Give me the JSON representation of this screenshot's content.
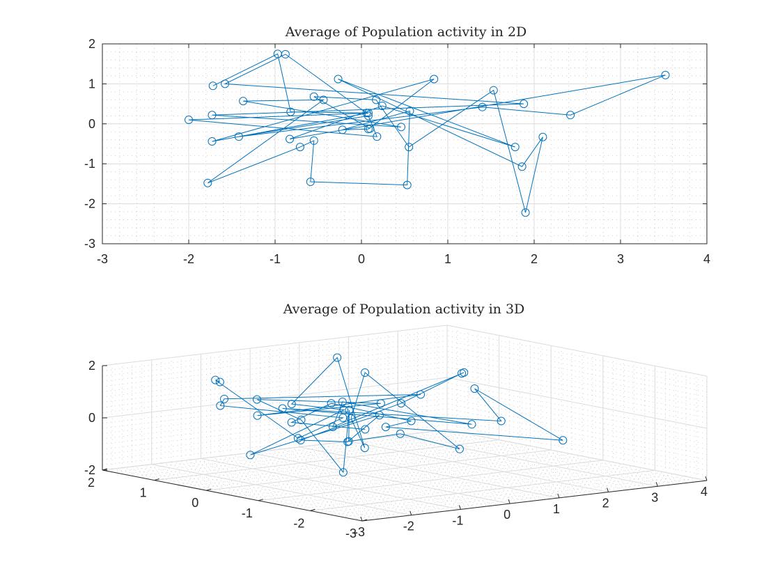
{
  "colors": {
    "series": "#0072bd",
    "axis": "#262626",
    "grid": "#dcdcdc"
  },
  "chart_data": [
    {
      "type": "line",
      "marker": "circle",
      "title": "Average of Population activity in 2D",
      "xlabel": "",
      "ylabel": "",
      "xlim": [
        -3,
        4
      ],
      "ylim": [
        -3,
        2
      ],
      "xticks": [
        "-3",
        "-2",
        "-1",
        "0",
        "1",
        "2",
        "3",
        "4"
      ],
      "yticks": [
        "-3",
        "-2",
        "-1",
        "0",
        "1",
        "2"
      ],
      "grid": true,
      "minor_grid": true,
      "box": true,
      "points": [
        [
          -1.72,
          0.95
        ],
        [
          -0.97,
          1.75
        ],
        [
          -0.82,
          0.3
        ],
        [
          0.06,
          0.27
        ],
        [
          -0.88,
          1.74
        ],
        [
          -1.58,
          1.0
        ],
        [
          1.88,
          0.5
        ],
        [
          -1.73,
          0.22
        ],
        [
          0.46,
          -0.08
        ],
        [
          -1.37,
          0.57
        ],
        [
          -0.44,
          0.6
        ],
        [
          -1.78,
          -1.48
        ],
        [
          -0.71,
          -0.58
        ],
        [
          -0.55,
          -0.42
        ],
        [
          -0.59,
          -1.45
        ],
        [
          0.53,
          -1.53
        ],
        [
          0.56,
          0.32
        ],
        [
          -0.22,
          -0.15
        ],
        [
          0.08,
          -0.13
        ],
        [
          0.84,
          1.12
        ],
        [
          -1.73,
          -0.44
        ],
        [
          0.08,
          0.27
        ],
        [
          -2.0,
          0.1
        ],
        [
          0.18,
          -0.32
        ],
        [
          0.08,
          0.2
        ],
        [
          -1.42,
          -0.32
        ],
        [
          1.4,
          0.42
        ],
        [
          2.42,
          0.22
        ],
        [
          3.52,
          1.22
        ],
        [
          -0.83,
          -0.38
        ],
        [
          0.24,
          0.45
        ],
        [
          1.78,
          -0.58
        ],
        [
          -0.27,
          1.12
        ],
        [
          1.86,
          -1.07
        ],
        [
          2.1,
          -0.33
        ],
        [
          1.9,
          -2.22
        ],
        [
          1.53,
          0.84
        ],
        [
          0.55,
          -0.58
        ],
        [
          0.17,
          0.6
        ],
        [
          -0.55,
          0.68
        ],
        [
          0.1,
          -0.12
        ]
      ]
    },
    {
      "type": "line3d",
      "marker": "circle",
      "title": "Average of Population activity in 3D",
      "xlim": [
        -3,
        4
      ],
      "ylim": [
        -3,
        2
      ],
      "zlim": [
        -2,
        2
      ],
      "xticks": [
        "-3",
        "-2",
        "-1",
        "0",
        "1",
        "2",
        "3",
        "4"
      ],
      "yticks": [
        "-3",
        "-2",
        "-1",
        "0",
        "1",
        "2"
      ],
      "zticks": [
        "-2",
        "0",
        "2"
      ],
      "grid": true,
      "minor_grid": true,
      "points": [
        [
          -1.72,
          0.95,
          1.5
        ],
        [
          -0.97,
          1.75,
          1.1
        ],
        [
          -0.82,
          0.3,
          -0.6
        ],
        [
          0.06,
          0.27,
          0.0
        ],
        [
          -0.88,
          1.74,
          0.1
        ],
        [
          -1.58,
          1.0,
          0.8
        ],
        [
          1.88,
          0.5,
          0.4
        ],
        [
          -1.73,
          0.22,
          0.5
        ],
        [
          0.46,
          -0.08,
          0.6
        ],
        [
          -1.37,
          0.57,
          0.9
        ],
        [
          -0.44,
          0.6,
          -0.1
        ],
        [
          -1.78,
          -1.48,
          -1.0
        ],
        [
          -0.71,
          -0.58,
          0.8
        ],
        [
          -0.55,
          -0.42,
          -0.5
        ],
        [
          -0.59,
          -1.45,
          0.2
        ],
        [
          0.53,
          -1.53,
          -0.6
        ],
        [
          0.56,
          0.32,
          1.6
        ],
        [
          -0.22,
          -0.15,
          0.2
        ],
        [
          0.08,
          -0.13,
          -1.0
        ],
        [
          0.84,
          1.12,
          1.8
        ],
        [
          -1.73,
          -0.44,
          1.2
        ],
        [
          0.08,
          0.27,
          0.3
        ],
        [
          -2.0,
          0.1,
          -0.9
        ],
        [
          0.18,
          -0.32,
          0.3
        ],
        [
          0.08,
          0.2,
          -0.9
        ],
        [
          -1.42,
          -0.32,
          -0.3
        ],
        [
          1.4,
          0.42,
          0.2
        ],
        [
          2.42,
          0.22,
          1.2
        ],
        [
          3.52,
          1.22,
          0.6
        ],
        [
          -0.83,
          -0.38,
          0.1
        ],
        [
          0.24,
          0.45,
          0.5
        ],
        [
          1.78,
          -0.58,
          -0.3
        ],
        [
          -0.27,
          1.12,
          0.1
        ],
        [
          1.86,
          -1.07,
          0.0
        ],
        [
          2.1,
          -0.33,
          0.9
        ],
        [
          1.9,
          -2.22,
          -0.3
        ],
        [
          1.53,
          0.84,
          -0.9
        ],
        [
          0.55,
          -0.58,
          0.1
        ],
        [
          0.17,
          0.6,
          0.4
        ],
        [
          -0.55,
          0.68,
          -0.2
        ],
        [
          0.1,
          -0.12,
          -0.3
        ]
      ]
    }
  ]
}
